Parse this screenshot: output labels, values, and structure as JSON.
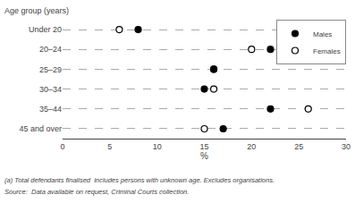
{
  "chart_data": {
    "type": "dot",
    "orientation": "horizontal",
    "categories": [
      "Under 20",
      "20–24",
      "25–29",
      "30–34",
      "35–44",
      "45 and over"
    ],
    "series": [
      {
        "name": "Males",
        "color": "black",
        "marker": "filled",
        "values": [
          8,
          22,
          16,
          15,
          22,
          17
        ]
      },
      {
        "name": "Females",
        "color": "black",
        "marker": "open",
        "values": [
          6,
          20,
          16,
          16,
          26,
          15
        ]
      }
    ],
    "xlabel": "%",
    "ylabel": "Age group (years)",
    "xlim": [
      0,
      30
    ],
    "xticks": [
      0,
      5,
      10,
      15,
      20,
      25,
      30
    ],
    "grid": true,
    "legend": "upper right",
    "annotations": [
      "(a) Total defendants finalised  includes persons with unknown age. Excludes organisations.",
      "Source:  Data available on request, Criminal Courts collection."
    ]
  }
}
